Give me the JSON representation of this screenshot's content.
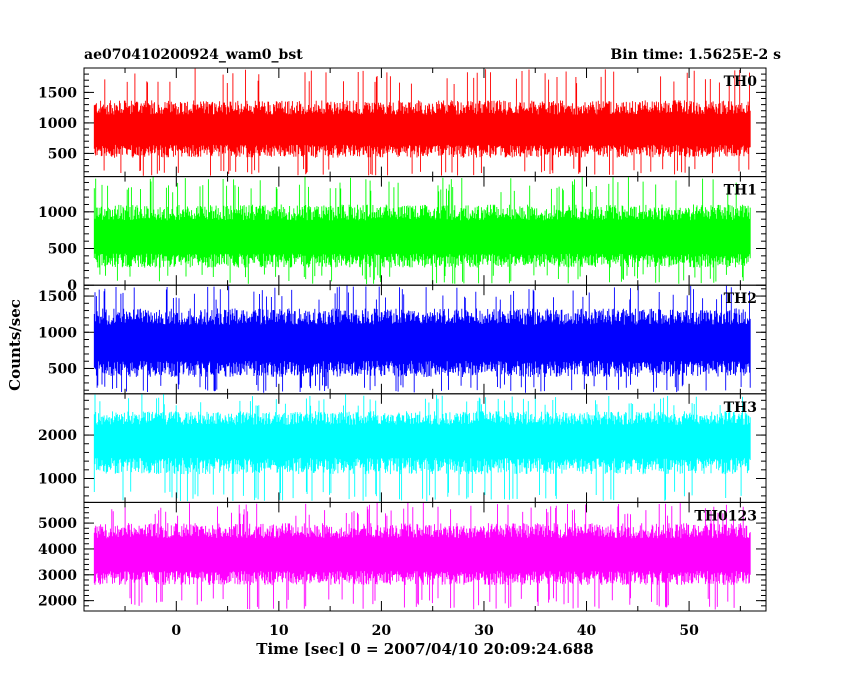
{
  "chart_data": {
    "type": "line",
    "title": "ae070410200924_wam0_bst",
    "bin_time_label": "Bin time: 1.5625E-2 s",
    "xlabel": "Time [sec] 0 = 2007/04/10 20:09:24.688",
    "ylabel": "Counts/sec",
    "xlim": [
      -9.0,
      57.5
    ],
    "x_data_range": [
      -8.0,
      56.0
    ],
    "x_ticks": [
      0,
      10,
      20,
      30,
      40,
      50
    ],
    "grid": false,
    "legend": "none",
    "series": [
      {
        "name": "TH0",
        "color": "#ff0000",
        "ylim": [
          120,
          1900
        ],
        "y_ticks": [
          500,
          1000,
          1500
        ],
        "baseline": 250,
        "center": 850,
        "spread_up": 520,
        "spread_down": 420,
        "peak_max": 1900
      },
      {
        "name": "TH1",
        "color": "#00ff00",
        "ylim": [
          0,
          1480
        ],
        "y_ticks": [
          0,
          500,
          1000
        ],
        "baseline": 150,
        "center": 620,
        "spread_up": 480,
        "spread_down": 380,
        "peak_max": 1480
      },
      {
        "name": "TH2",
        "color": "#0000ff",
        "ylim": [
          150,
          1650
        ],
        "y_ticks": [
          500,
          1000,
          1500
        ],
        "baseline": 280,
        "center": 830,
        "spread_up": 500,
        "spread_down": 450,
        "peak_max": 1650
      },
      {
        "name": "TH3",
        "color": "#00ffff",
        "ylim": [
          450,
          2950
        ],
        "y_ticks": [
          1000,
          2000
        ],
        "baseline": 700,
        "center": 1850,
        "spread_up": 700,
        "spread_down": 750,
        "peak_max": 2950
      },
      {
        "name": "TH0123",
        "color": "#ff00ff",
        "ylim": [
          1600,
          5800
        ],
        "y_ticks": [
          2000,
          3000,
          4000,
          5000
        ],
        "baseline": 2100,
        "center": 3700,
        "spread_up": 1300,
        "spread_down": 1100,
        "peak_max": 5800
      }
    ]
  }
}
